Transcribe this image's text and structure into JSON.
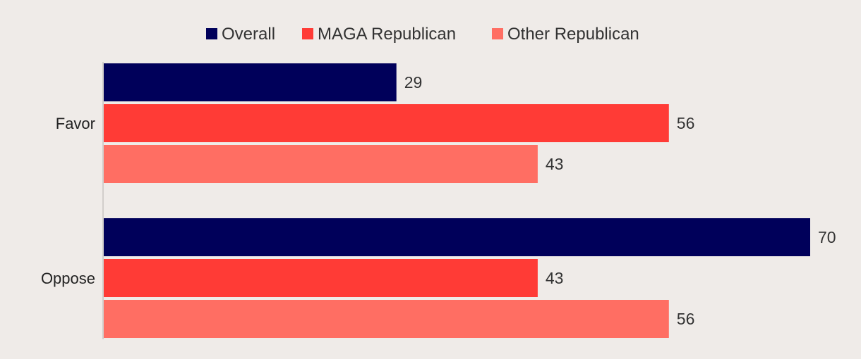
{
  "chart_data": {
    "type": "bar",
    "orientation": "horizontal",
    "title": "",
    "xlabel": "",
    "ylabel": "",
    "xlim": [
      0,
      70
    ],
    "grid": false,
    "legend_position": "top-center",
    "categories": [
      "Favor",
      "Oppose"
    ],
    "series": [
      {
        "name": "Overall",
        "color": "#00005a",
        "values": [
          29,
          70
        ]
      },
      {
        "name": "MAGA Republican",
        "color": "#ff3b36",
        "values": [
          56,
          43
        ]
      },
      {
        "name": "Other Republican",
        "color": "#ff6e63",
        "values": [
          43,
          56
        ]
      }
    ]
  }
}
